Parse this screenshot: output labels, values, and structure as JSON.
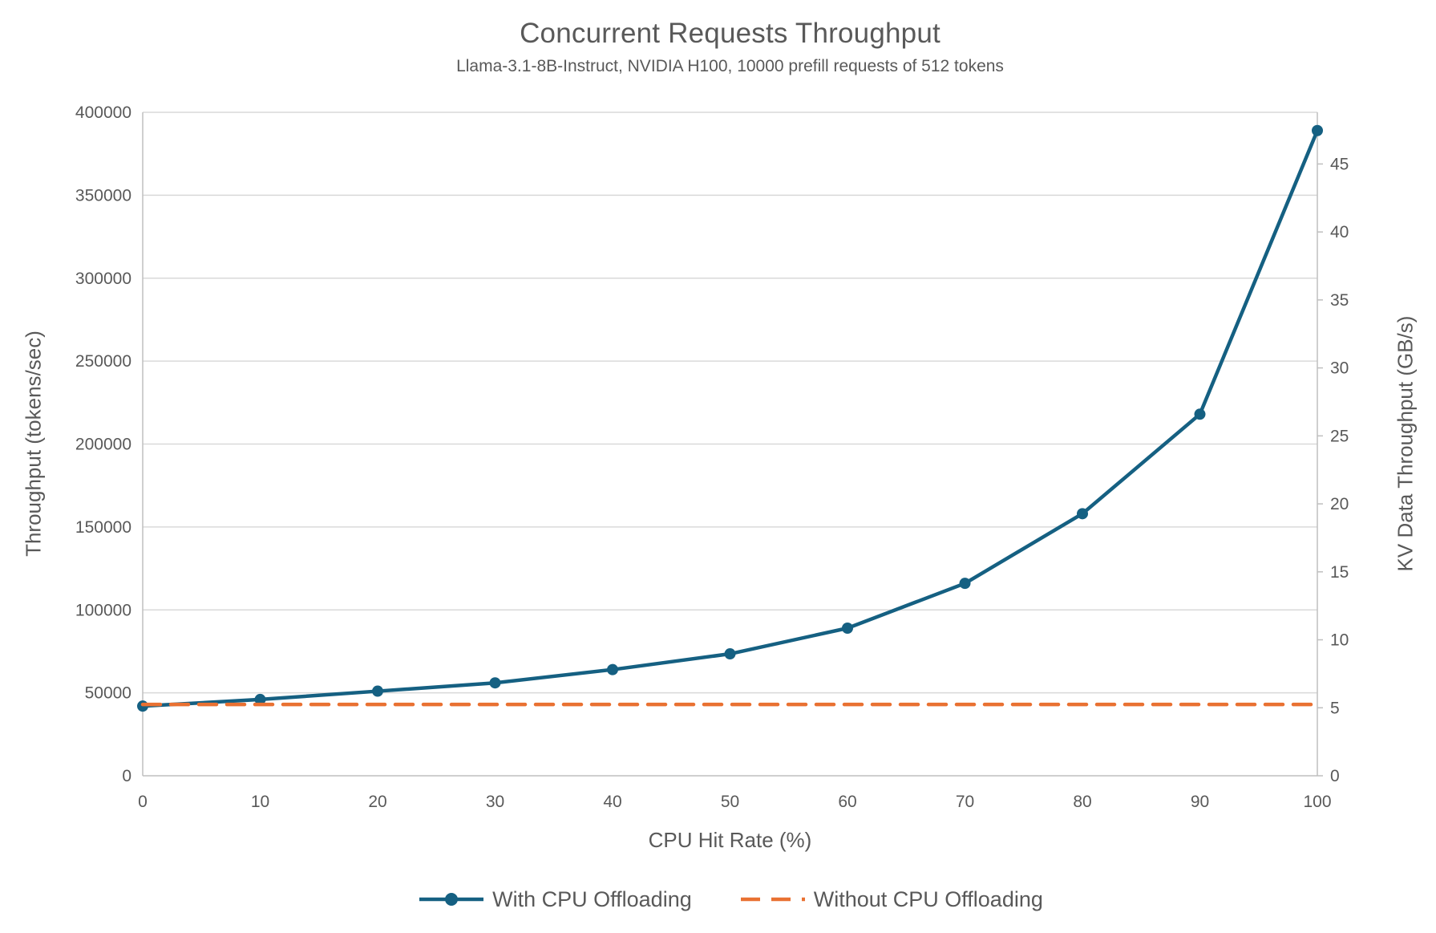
{
  "title": "Concurrent Requests Throughput",
  "subtitle": "Llama-3.1-8B-Instruct, NVIDIA H100, 10000 prefill requests of 512 tokens",
  "colors": {
    "accent_blue": "#156082",
    "accent_orange": "#E97132",
    "text_gray": "#595959",
    "gridline": "#D9D9D9",
    "axis_line": "#BFBFBF",
    "background": "#FFFFFF"
  },
  "chart_data": {
    "type": "line",
    "title": "Concurrent Requests Throughput",
    "subtitle": "Llama-3.1-8B-Instruct, NVIDIA H100, 10000 prefill requests of 512 tokens",
    "xlabel": "CPU Hit Rate (%)",
    "ylabel_left": "Throughput (tokens/sec)",
    "ylabel_right": "KV Data Throughput (GB/s)",
    "x": [
      0,
      10,
      20,
      30,
      40,
      50,
      60,
      70,
      80,
      90,
      100
    ],
    "x_ticks": [
      0,
      10,
      20,
      30,
      40,
      50,
      60,
      70,
      80,
      90,
      100
    ],
    "xlim": [
      0,
      100
    ],
    "ylim_left": [
      0,
      400000
    ],
    "y_ticks_left": [
      0,
      50000,
      100000,
      150000,
      200000,
      250000,
      300000,
      350000,
      400000
    ],
    "ylim_right": [
      0,
      48.8
    ],
    "y_ticks_right": [
      0,
      5,
      10,
      15,
      20,
      25,
      30,
      35,
      40,
      45
    ],
    "grid": "horizontal",
    "legend_position": "bottom",
    "series": [
      {
        "name": "With CPU Offloading",
        "color": "#156082",
        "line_style": "solid",
        "marker": "circle",
        "axis": "left",
        "values": [
          42000,
          46000,
          51000,
          56000,
          64000,
          73500,
          89000,
          116000,
          158000,
          218000,
          389000
        ],
        "kv_gbps": [
          5.1,
          5.6,
          6.2,
          6.8,
          7.8,
          9.0,
          10.9,
          14.2,
          19.3,
          26.6,
          47.5
        ]
      },
      {
        "name": "Without CPU Offloading",
        "color": "#E97132",
        "line_style": "dashed",
        "marker": "none",
        "axis": "left",
        "values": [
          43000,
          43000,
          43000,
          43000,
          43000,
          43000,
          43000,
          43000,
          43000,
          43000,
          43000
        ],
        "kv_gbps": [
          5.2,
          5.2,
          5.2,
          5.2,
          5.2,
          5.2,
          5.2,
          5.2,
          5.2,
          5.2,
          5.2
        ]
      }
    ]
  }
}
